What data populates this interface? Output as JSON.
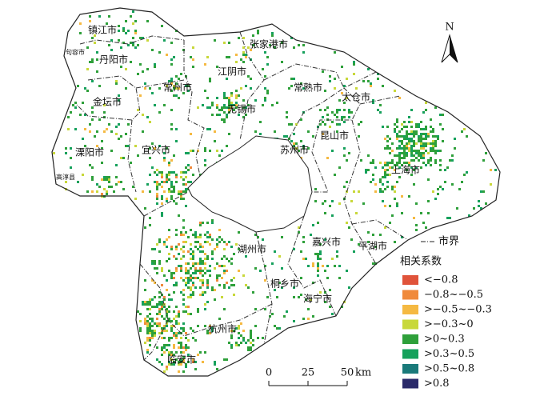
{
  "north": "N",
  "cities": [
    "镇江市",
    "句容市",
    "丹阳市",
    "常州市",
    "江阴市",
    "张家港市",
    "常熟市",
    "太仓市",
    "金坛市",
    "无锡市",
    "昆山市",
    "溧阳市",
    "宜兴市",
    "苏州市",
    "上海市",
    "高淳县",
    "湖州市",
    "嘉兴市",
    "平湖市",
    "桐乡市",
    "海宁市",
    "杭州市",
    "临安市"
  ],
  "boundary_legend": "市界",
  "legend": {
    "title": "相关系数",
    "items": [
      {
        "label": "<−0.8",
        "color": "#e0533a"
      },
      {
        "label": "−0.8~−0.5",
        "color": "#f08a3c"
      },
      {
        "label": ">−0.5~−0.3",
        "color": "#f5b942"
      },
      {
        "label": ">−0.3~0",
        "color": "#c8d83a"
      },
      {
        "label": ">0~0.3",
        "color": "#2ea03a"
      },
      {
        "label": ">0.3~0.5",
        "color": "#16a15c"
      },
      {
        "label": ">0.5~0.8",
        "color": "#1a7a7a"
      },
      {
        "label": ">0.8",
        "color": "#2a2a6a"
      }
    ]
  },
  "scale": {
    "ticks": [
      0,
      25,
      50
    ],
    "unit": "km"
  }
}
